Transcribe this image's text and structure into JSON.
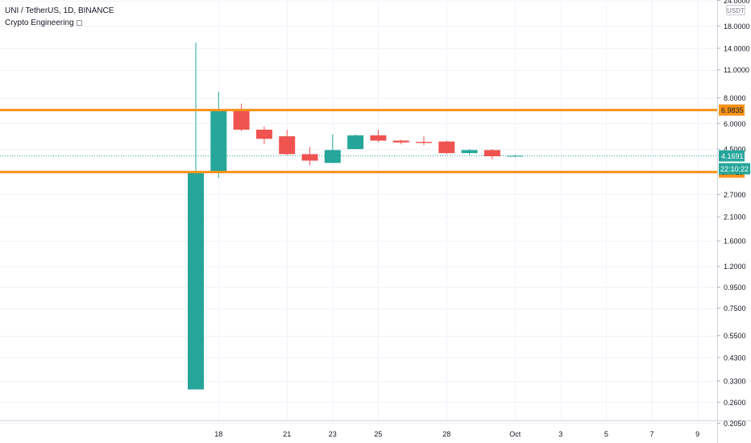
{
  "header": {
    "title": "UNI / TetherUS, 1D, BINANCE",
    "indicator": "Crypto Engineering"
  },
  "currency_badge": "USDT",
  "colors": {
    "up": "#26a69a",
    "down": "#ef5350",
    "level": "#f7931a",
    "axis_text": "#131722",
    "grid": "#f0f3fa",
    "last_price": "#26a69a"
  },
  "chart_data": {
    "type": "candlestick",
    "y_scale": "log",
    "ylim": [
      0.205,
      24.0
    ],
    "y_ticks": [
      "24.0000",
      "18.0000",
      "14.0000",
      "11.0000",
      "8.0000",
      "6.0000",
      "4.5000",
      "2.7000",
      "2.1000",
      "1.6000",
      "1.2000",
      "0.9500",
      "0.7500",
      "0.5500",
      "0.4300",
      "0.3300",
      "0.2600",
      "0.2050"
    ],
    "x_ticks": [
      "18",
      "21",
      "23",
      "25",
      "28",
      "Oct",
      "3",
      "5",
      "7",
      "9"
    ],
    "candles": [
      {
        "date": "2020-09-17",
        "open": 0.3,
        "high": 14.9,
        "low": 0.3,
        "close": 3.45
      },
      {
        "date": "2020-09-18",
        "open": 3.47,
        "high": 8.6,
        "low": 3.25,
        "close": 6.98
      },
      {
        "date": "2020-09-19",
        "open": 6.98,
        "high": 7.5,
        "low": 5.5,
        "close": 5.6
      },
      {
        "date": "2020-09-20",
        "open": 5.6,
        "high": 5.8,
        "low": 4.75,
        "close": 5.05
      },
      {
        "date": "2020-09-21",
        "open": 5.2,
        "high": 5.6,
        "low": 4.2,
        "close": 4.25
      },
      {
        "date": "2020-09-22",
        "open": 4.25,
        "high": 4.6,
        "low": 3.75,
        "close": 3.95
      },
      {
        "date": "2020-09-23",
        "open": 3.85,
        "high": 5.3,
        "low": 3.85,
        "close": 4.45
      },
      {
        "date": "2020-09-24",
        "open": 4.5,
        "high": 5.3,
        "low": 4.5,
        "close": 5.25
      },
      {
        "date": "2020-09-25",
        "open": 5.25,
        "high": 5.6,
        "low": 4.85,
        "close": 4.95
      },
      {
        "date": "2020-09-26",
        "open": 4.95,
        "high": 5.0,
        "low": 4.75,
        "close": 4.85
      },
      {
        "date": "2020-09-27",
        "open": 4.88,
        "high": 5.2,
        "low": 4.7,
        "close": 4.82
      },
      {
        "date": "2020-09-28",
        "open": 4.9,
        "high": 4.95,
        "low": 4.25,
        "close": 4.3
      },
      {
        "date": "2020-09-29",
        "open": 4.3,
        "high": 4.5,
        "low": 4.22,
        "close": 4.45
      },
      {
        "date": "2020-09-30",
        "open": 4.45,
        "high": 4.5,
        "low": 4.0,
        "close": 4.15
      },
      {
        "date": "2020-10-01",
        "open": 4.15,
        "high": 4.22,
        "low": 4.12,
        "close": 4.17
      }
    ],
    "levels": [
      {
        "label": "6.9835",
        "value": 6.9835
      },
      {
        "label": "3.4726",
        "value": 3.4726
      }
    ],
    "last_price": {
      "value": 4.1691,
      "label": "4.1691",
      "countdown": "22:10:22"
    }
  }
}
